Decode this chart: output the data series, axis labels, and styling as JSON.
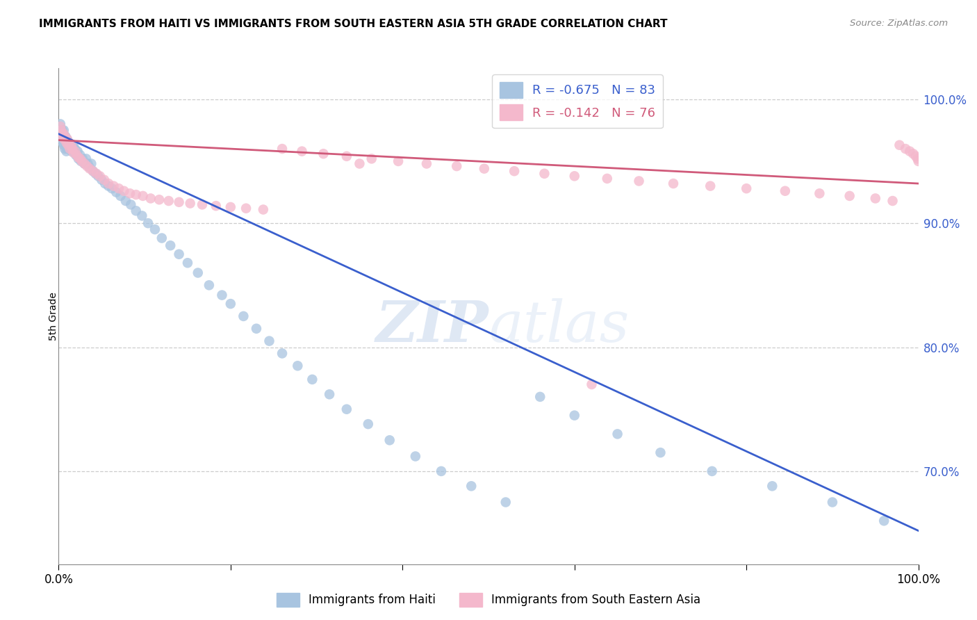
{
  "title": "IMMIGRANTS FROM HAITI VS IMMIGRANTS FROM SOUTH EASTERN ASIA 5TH GRADE CORRELATION CHART",
  "source": "Source: ZipAtlas.com",
  "ylabel": "5th Grade",
  "haiti_color": "#a8c4e0",
  "sea_color": "#f4b8cc",
  "haiti_line_color": "#3a5fcd",
  "sea_line_color": "#d05a7a",
  "xlim": [
    0.0,
    1.0
  ],
  "ylim": [
    0.625,
    1.025
  ],
  "yticks": [
    0.7,
    0.8,
    0.9,
    1.0
  ],
  "ytick_labels": [
    "70.0%",
    "80.0%",
    "90.0%",
    "100.0%"
  ],
  "haiti_line_x0": 0.0,
  "haiti_line_y0": 0.972,
  "haiti_line_x1": 1.0,
  "haiti_line_y1": 0.652,
  "sea_line_x0": 0.0,
  "sea_line_y0": 0.967,
  "sea_line_x1": 1.0,
  "sea_line_y1": 0.932,
  "haiti_x": [
    0.002,
    0.003,
    0.003,
    0.004,
    0.004,
    0.005,
    0.005,
    0.005,
    0.006,
    0.006,
    0.007,
    0.007,
    0.008,
    0.008,
    0.009,
    0.009,
    0.01,
    0.01,
    0.011,
    0.012,
    0.013,
    0.014,
    0.015,
    0.016,
    0.017,
    0.018,
    0.019,
    0.02,
    0.022,
    0.023,
    0.025,
    0.026,
    0.028,
    0.03,
    0.032,
    0.034,
    0.036,
    0.038,
    0.04,
    0.043,
    0.046,
    0.05,
    0.054,
    0.058,
    0.062,
    0.067,
    0.072,
    0.078,
    0.084,
    0.09,
    0.097,
    0.104,
    0.112,
    0.12,
    0.13,
    0.14,
    0.15,
    0.162,
    0.175,
    0.19,
    0.2,
    0.215,
    0.23,
    0.245,
    0.26,
    0.278,
    0.295,
    0.315,
    0.335,
    0.36,
    0.385,
    0.415,
    0.445,
    0.48,
    0.52,
    0.56,
    0.6,
    0.65,
    0.7,
    0.76,
    0.83,
    0.9,
    0.96
  ],
  "haiti_y": [
    0.98,
    0.975,
    0.97,
    0.975,
    0.968,
    0.972,
    0.968,
    0.965,
    0.975,
    0.963,
    0.97,
    0.96,
    0.97,
    0.962,
    0.968,
    0.958,
    0.967,
    0.96,
    0.962,
    0.965,
    0.96,
    0.962,
    0.958,
    0.96,
    0.963,
    0.958,
    0.96,
    0.955,
    0.958,
    0.952,
    0.955,
    0.95,
    0.952,
    0.948,
    0.952,
    0.948,
    0.945,
    0.948,
    0.942,
    0.94,
    0.938,
    0.935,
    0.932,
    0.93,
    0.928,
    0.925,
    0.922,
    0.918,
    0.915,
    0.91,
    0.906,
    0.9,
    0.895,
    0.888,
    0.882,
    0.875,
    0.868,
    0.86,
    0.85,
    0.842,
    0.835,
    0.825,
    0.815,
    0.805,
    0.795,
    0.785,
    0.774,
    0.762,
    0.75,
    0.738,
    0.725,
    0.712,
    0.7,
    0.688,
    0.675,
    0.76,
    0.745,
    0.73,
    0.715,
    0.7,
    0.688,
    0.675,
    0.66
  ],
  "sea_x": [
    0.002,
    0.003,
    0.004,
    0.005,
    0.006,
    0.006,
    0.007,
    0.008,
    0.009,
    0.01,
    0.011,
    0.012,
    0.013,
    0.015,
    0.016,
    0.017,
    0.019,
    0.021,
    0.023,
    0.025,
    0.027,
    0.03,
    0.033,
    0.036,
    0.04,
    0.044,
    0.048,
    0.053,
    0.058,
    0.064,
    0.07,
    0.076,
    0.083,
    0.09,
    0.098,
    0.107,
    0.117,
    0.128,
    0.14,
    0.153,
    0.167,
    0.183,
    0.2,
    0.218,
    0.238,
    0.26,
    0.283,
    0.308,
    0.335,
    0.364,
    0.395,
    0.428,
    0.463,
    0.495,
    0.53,
    0.565,
    0.6,
    0.638,
    0.675,
    0.715,
    0.758,
    0.8,
    0.845,
    0.885,
    0.92,
    0.95,
    0.97,
    0.978,
    0.985,
    0.99,
    0.994,
    0.997,
    0.999,
    1.0,
    0.35,
    0.62
  ],
  "sea_y": [
    0.978,
    0.975,
    0.972,
    0.97,
    0.972,
    0.968,
    0.97,
    0.968,
    0.965,
    0.968,
    0.963,
    0.965,
    0.96,
    0.962,
    0.96,
    0.957,
    0.958,
    0.955,
    0.953,
    0.952,
    0.95,
    0.948,
    0.946,
    0.944,
    0.942,
    0.94,
    0.938,
    0.935,
    0.932,
    0.93,
    0.928,
    0.926,
    0.924,
    0.923,
    0.922,
    0.92,
    0.919,
    0.918,
    0.917,
    0.916,
    0.915,
    0.914,
    0.913,
    0.912,
    0.911,
    0.96,
    0.958,
    0.956,
    0.954,
    0.952,
    0.95,
    0.948,
    0.946,
    0.944,
    0.942,
    0.94,
    0.938,
    0.936,
    0.934,
    0.932,
    0.93,
    0.928,
    0.926,
    0.924,
    0.922,
    0.92,
    0.918,
    0.963,
    0.96,
    0.958,
    0.956,
    0.954,
    0.952,
    0.95,
    0.948,
    0.77
  ],
  "watermark_zip": "ZIP",
  "watermark_atlas": "atlas",
  "legend_haiti_text": "R = -0.675   N = 83",
  "legend_sea_text": "R = -0.142   N = 76",
  "bottom_legend_haiti": "Immigrants from Haiti",
  "bottom_legend_sea": "Immigrants from South Eastern Asia"
}
